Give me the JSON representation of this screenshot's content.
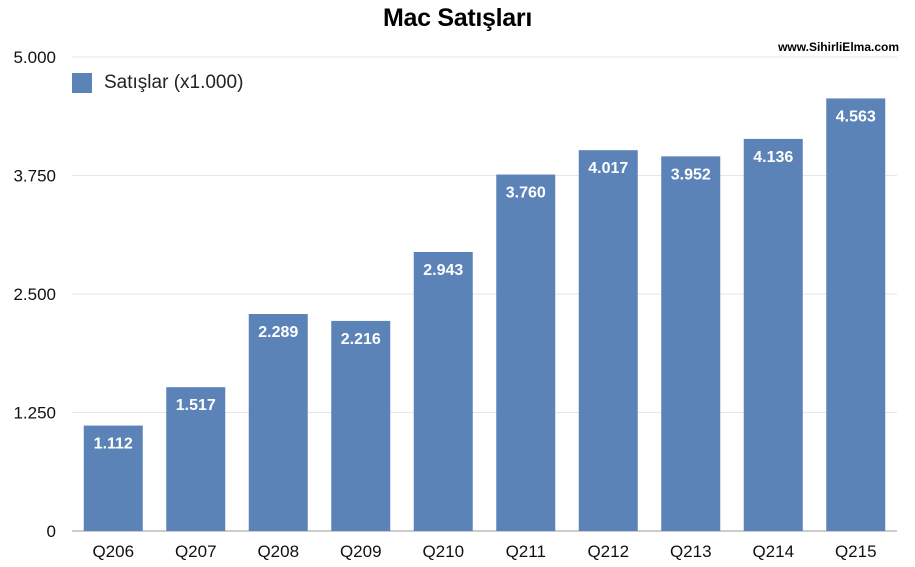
{
  "chart_data": {
    "type": "bar",
    "title": "Mac Satışları",
    "watermark": "www.SihirliElma.com",
    "categories": [
      "Q206",
      "Q207",
      "Q208",
      "Q209",
      "Q210",
      "Q211",
      "Q212",
      "Q213",
      "Q214",
      "Q215"
    ],
    "series": [
      {
        "name": "Satışlar (x1.000)",
        "values": [
          1112,
          1517,
          2289,
          2216,
          2943,
          3760,
          4017,
          3952,
          4136,
          4563
        ],
        "value_labels": [
          "1.112",
          "1.517",
          "2.289",
          "2.216",
          "2.943",
          "3.760",
          "4.017",
          "3.952",
          "4.136",
          "4.563"
        ],
        "color": "#5b83b8"
      }
    ],
    "yticks": [
      0,
      1250,
      2500,
      3750,
      5000
    ],
    "ytick_labels": [
      "0",
      "1.250",
      "2.500",
      "3.750",
      "5.000"
    ],
    "ylim": [
      0,
      5000
    ],
    "xlabel": "",
    "ylabel": "",
    "grid": true,
    "legend_position": "top-left"
  }
}
